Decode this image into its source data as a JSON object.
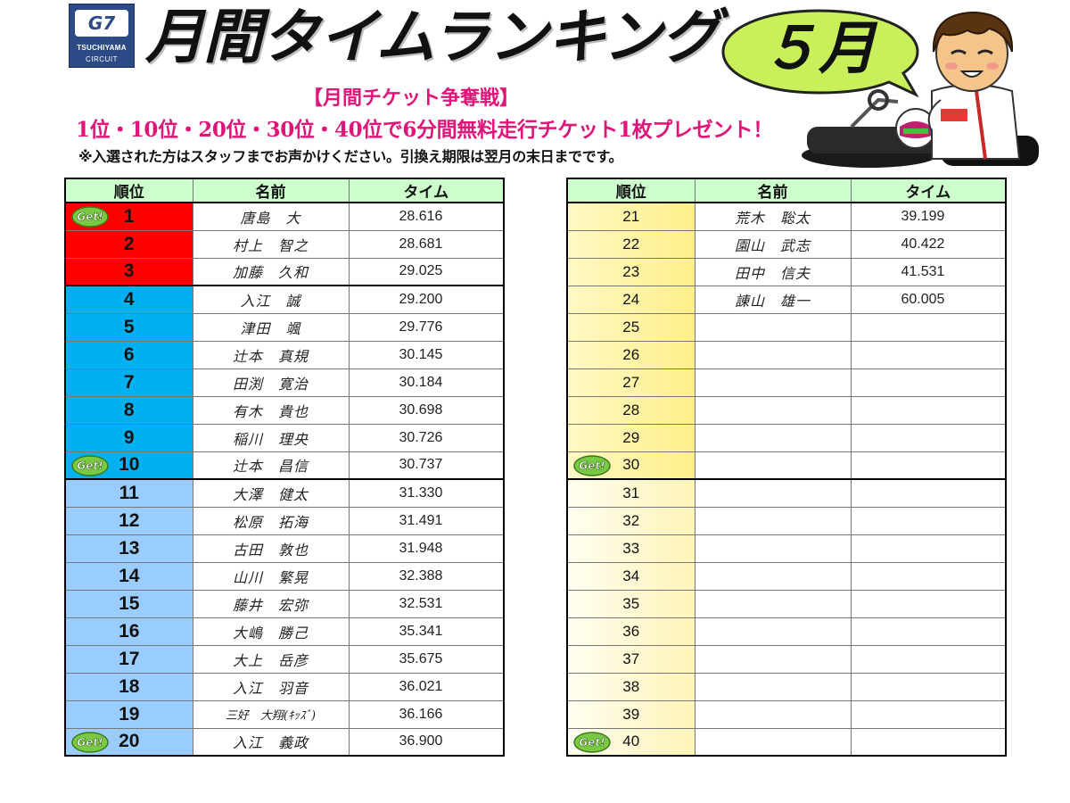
{
  "logo": {
    "mark": "G7",
    "group": "G7 Group",
    "line1": "TSUCHIYAMA",
    "line2": "CIRCUIT"
  },
  "title": "月間タイムランキング",
  "month": "５月",
  "campaign": {
    "title": "【月間チケット争奪戦】",
    "description": "1位・10位・20位・30位・40位で6分間無料走行チケット1枚プレゼント！",
    "notice": "※入選された方はスタッフまでお声かけください。引換え期限は翌月の末日までです。"
  },
  "badge_text": "Get!",
  "colors": {
    "red": "#ff0000",
    "cyan": "#00b0f0",
    "blue": "#99ccff",
    "header": "#ccffcc",
    "yellow": "#ffef8a",
    "campaign": "#e0157a"
  },
  "headers": {
    "rank": "順位",
    "name": "名前",
    "time": "タイム"
  },
  "left_rows": [
    {
      "rank": "1",
      "name": "唐島　大",
      "time": "28.616",
      "get": true
    },
    {
      "rank": "2",
      "name": "村上　智之",
      "time": "28.681"
    },
    {
      "rank": "3",
      "name": "加藤　久和",
      "time": "29.025"
    },
    {
      "rank": "4",
      "name": "入江　誠",
      "time": "29.200"
    },
    {
      "rank": "5",
      "name": "津田　颯",
      "time": "29.776"
    },
    {
      "rank": "6",
      "name": "辻本　真規",
      "time": "30.145"
    },
    {
      "rank": "7",
      "name": "田渕　寛治",
      "time": "30.184"
    },
    {
      "rank": "8",
      "name": "有木　貴也",
      "time": "30.698"
    },
    {
      "rank": "9",
      "name": "稲川　理央",
      "time": "30.726"
    },
    {
      "rank": "10",
      "name": "辻本　昌信",
      "time": "30.737",
      "get": true
    },
    {
      "rank": "11",
      "name": "大澤　健太",
      "time": "31.330"
    },
    {
      "rank": "12",
      "name": "松原　拓海",
      "time": "31.491"
    },
    {
      "rank": "13",
      "name": "古田　敦也",
      "time": "31.948"
    },
    {
      "rank": "14",
      "name": "山川　繁晃",
      "time": "32.388"
    },
    {
      "rank": "15",
      "name": "藤井　宏弥",
      "time": "32.531"
    },
    {
      "rank": "16",
      "name": "大嶋　勝己",
      "time": "35.341"
    },
    {
      "rank": "17",
      "name": "大上　岳彦",
      "time": "35.675"
    },
    {
      "rank": "18",
      "name": "入江　羽音",
      "time": "36.021"
    },
    {
      "rank": "19",
      "name": "三好　大翔(ｷｯｽﾞ)",
      "time": "36.166"
    },
    {
      "rank": "20",
      "name": "入江　義政",
      "time": "36.900",
      "get": true
    }
  ],
  "right_rows": [
    {
      "rank": "21",
      "name": "荒木　聡太",
      "time": "39.199"
    },
    {
      "rank": "22",
      "name": "園山　武志",
      "time": "40.422"
    },
    {
      "rank": "23",
      "name": "田中　信夫",
      "time": "41.531"
    },
    {
      "rank": "24",
      "name": "諌山　雄一",
      "time": "60.005"
    },
    {
      "rank": "25",
      "name": "",
      "time": ""
    },
    {
      "rank": "26",
      "name": "",
      "time": ""
    },
    {
      "rank": "27",
      "name": "",
      "time": ""
    },
    {
      "rank": "28",
      "name": "",
      "time": ""
    },
    {
      "rank": "29",
      "name": "",
      "time": ""
    },
    {
      "rank": "30",
      "name": "",
      "time": "",
      "get": true
    },
    {
      "rank": "31",
      "name": "",
      "time": ""
    },
    {
      "rank": "32",
      "name": "",
      "time": ""
    },
    {
      "rank": "33",
      "name": "",
      "time": ""
    },
    {
      "rank": "34",
      "name": "",
      "time": ""
    },
    {
      "rank": "35",
      "name": "",
      "time": ""
    },
    {
      "rank": "36",
      "name": "",
      "time": ""
    },
    {
      "rank": "37",
      "name": "",
      "time": ""
    },
    {
      "rank": "38",
      "name": "",
      "time": ""
    },
    {
      "rank": "39",
      "name": "",
      "time": ""
    },
    {
      "rank": "40",
      "name": "",
      "time": "",
      "get": true
    }
  ]
}
